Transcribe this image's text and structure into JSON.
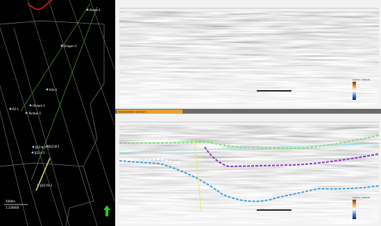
{
  "map": {
    "wells": [
      "Domo-1",
      "Dragon-1",
      "Kilo-1",
      "PZ-1",
      "Okilom-1",
      "Tamboi-1",
      "JDZ-N-2",
      "JDZ-W-1",
      "JDZ-V-2",
      "JDZ-VV-2"
    ],
    "scale": {
      "distance": "5000m",
      "ratio": "1:126000"
    }
  },
  "tab": {
    "title": "Interpretation window 1"
  },
  "sections": [
    {
      "legend": "Seismic (default)"
    },
    {
      "legend": "Seismic (default)"
    }
  ]
}
